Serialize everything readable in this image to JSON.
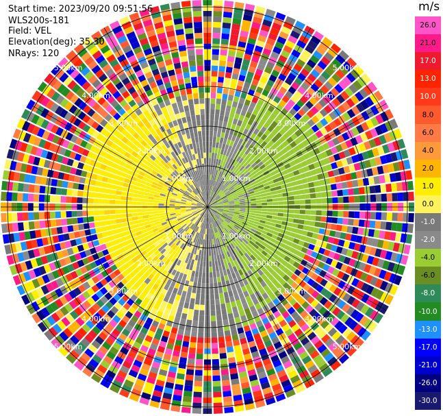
{
  "header": {
    "start_time": "Start time: 2023/09/20 09:51:56",
    "instrument": "WLS200s-181",
    "field": "Field: VEL",
    "elevation": "Elevation(deg): 35.30",
    "nrays": "NRays: 120"
  },
  "chart_data": {
    "type": "ppi-polar",
    "title": "",
    "units": "m/s",
    "nrays": 120,
    "ring_labels_inner_to_outer": [
      "1.00km",
      "2.00km",
      "3.00km",
      "4.00km",
      "5.00km"
    ],
    "colorbar": {
      "title": "m/s",
      "tick_labels": [
        "26.0",
        "21.0",
        "17.0",
        "13.0",
        "10.0",
        "8.0",
        "6.0",
        "4.0",
        "2.0",
        "1.0",
        "0.0",
        "-1.0",
        "-2.0",
        "-4.0",
        "-6.0",
        "-8.0",
        "-10.0",
        "-13.0",
        "-17.0",
        "-21.0",
        "-26.0",
        "-30.0"
      ],
      "colors": [
        "#ff55c8",
        "#ff1a8a",
        "#ee1b2e",
        "#ff2400",
        "#ff3a1a",
        "#ff5a2e",
        "#ff7a45",
        "#ff9a3a",
        "#ffb400",
        "#ffee00",
        "#fff35c",
        "#7a7a7a",
        "#8a8a8a",
        "#9acd32",
        "#6b8e23",
        "#2e8b57",
        "#228b22",
        "#1e90ff",
        "#0000ff",
        "#0000cd",
        "#000080",
        "#191970"
      ]
    }
  }
}
